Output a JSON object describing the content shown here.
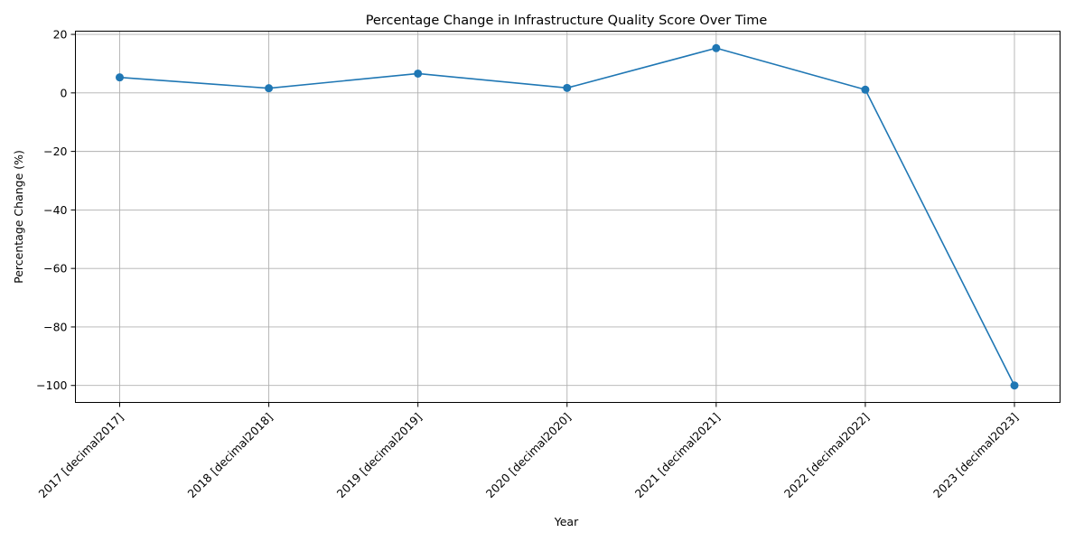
{
  "chart_data": {
    "type": "line",
    "title": "Percentage Change in Infrastructure Quality Score Over Time",
    "xlabel": "Year",
    "ylabel": "Percentage Change (%)",
    "categories": [
      "2017 [decimal2017]",
      "2018 [decimal2018]",
      "2019 [decimal2019]",
      "2020 [decimal2020]",
      "2021 [decimal2021]",
      "2022 [decimal2022]",
      "2023 [decimal2023]"
    ],
    "series": [
      {
        "values": [
          5.3,
          1.6,
          6.6,
          1.7,
          15.3,
          1.1,
          -100.0
        ],
        "color": "#1f77b4",
        "marker": "circle"
      }
    ],
    "yticks": [
      20,
      0,
      -20,
      -40,
      -60,
      -80,
      -100
    ],
    "ytick_labels": [
      "20",
      "0",
      "−20",
      "−40",
      "−60",
      "−80",
      "−100"
    ],
    "ylim": [
      -105.8,
      21.1
    ],
    "grid": true,
    "xtick_rotation": 45
  }
}
